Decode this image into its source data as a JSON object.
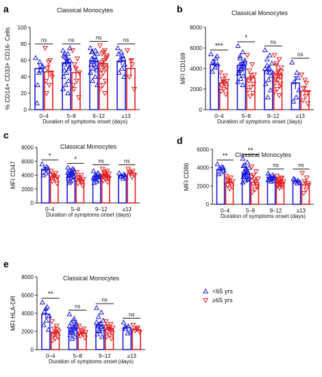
{
  "colors": {
    "young": "#1a1adf",
    "old": "#e41a1c",
    "axis": "#222222"
  },
  "chart_data": [
    {
      "type": "bar",
      "panel": "a",
      "title": "Classical Monocytes",
      "ylabel": "% CD14+ CD33+ CD16- Cells",
      "xlabel": "Duration of symptoms onset (days)",
      "ylim": [
        0,
        100
      ],
      "yticks": [
        "0",
        "20",
        "40",
        "60",
        "80",
        "100"
      ],
      "categories": [
        "0–4",
        "5–8",
        "9–12",
        "≥13"
      ],
      "series": [
        {
          "name": "<65 yrs",
          "values": [
            50,
            57,
            59,
            59
          ],
          "err": [
            6,
            4,
            3,
            5
          ],
          "points": [
            [
              63,
              48,
              30,
              53,
              58,
              8,
              52,
              45
            ],
            [
              72,
              68,
              64,
              60,
              58,
              55,
              50,
              45,
              40,
              35,
              30,
              25,
              20,
              68,
              75,
              62,
              48,
              52,
              58,
              66
            ],
            [
              75,
              72,
              70,
              68,
              65,
              62,
              60,
              58,
              55,
              52,
              50,
              45,
              40,
              35,
              30,
              65,
              70,
              48,
              55
            ],
            [
              75,
              65,
              60,
              55,
              50,
              45,
              40,
              70,
              68,
              62
            ]
          ]
        },
        {
          "name": "≥65 yrs",
          "values": [
            46,
            45,
            56,
            50
          ],
          "err": [
            8,
            7,
            4,
            11
          ],
          "points": [
            [
              75,
              60,
              50,
              40,
              30,
              20,
              45,
              58,
              35
            ],
            [
              72,
              62,
              55,
              45,
              35,
              25,
              15,
              50,
              30
            ],
            [
              78,
              72,
              68,
              64,
              60,
              55,
              50,
              45,
              40,
              35,
              30,
              25,
              20,
              58,
              66,
              52,
              48,
              62,
              70
            ],
            [
              72,
              55,
              40,
              25,
              60
            ]
          ]
        }
      ],
      "significance": [
        "ns",
        "ns",
        "ns",
        "ns"
      ]
    },
    {
      "type": "bar",
      "panel": "b",
      "title": "Classical Monocytes",
      "ylabel": "MFI CD169",
      "xlabel": "Duration of symptoms onset (days)",
      "ylim": [
        0,
        8000
      ],
      "yticks": [
        "0",
        "2000",
        "4000",
        "6000",
        "8000"
      ],
      "categories": [
        "0–4",
        "5–8",
        "9–12",
        "≥13"
      ],
      "series": [
        {
          "name": "<65 yrs",
          "values": [
            4400,
            4300,
            3800,
            2600
          ],
          "err": [
            400,
            300,
            350,
            600
          ],
          "points": [
            [
              5400,
              5000,
              4700,
              4400,
              4100,
              3700,
              5200,
              4500
            ],
            [
              6200,
              5600,
              5200,
              4800,
              4500,
              4300,
              4100,
              3900,
              3600,
              3300,
              3000,
              2700,
              2400,
              5000,
              4600,
              4200,
              3800,
              4400,
              4000,
              3500
            ],
            [
              5800,
              5300,
              4900,
              4500,
              4100,
              3700,
              3300,
              2900,
              2500,
              1900,
              1200,
              4000,
              3600,
              4300
            ],
            [
              4600,
              3600,
              2700,
              1900,
              1200,
              800,
              3100
            ]
          ]
        },
        {
          "name": "≥65 yrs",
          "values": [
            2600,
            3100,
            3500,
            1800
          ],
          "err": [
            300,
            400,
            300,
            400
          ],
          "points": [
            [
              3600,
              3300,
              3000,
              2800,
              2600,
              2400,
              2200,
              2000,
              1800,
              1500,
              2700
            ],
            [
              5300,
              4400,
              3800,
              3400,
              3100,
              2800,
              2500,
              2200,
              1900,
              1600,
              1300
            ],
            [
              5300,
              4900,
              4500,
              4100,
              3800,
              3500,
              3200,
              2900,
              2600,
              2300,
              2000,
              1700,
              1400,
              4300,
              3700,
              3300,
              3000,
              2500
            ],
            [
              3400,
              2600,
              2100,
              1700,
              1300,
              900,
              600,
              2900
            ]
          ]
        }
      ],
      "significance": [
        "***",
        "*",
        "ns",
        "ns"
      ]
    },
    {
      "type": "bar",
      "panel": "c",
      "title": "Classical Monocytes",
      "ylabel": "MFI CD47",
      "xlabel": "Duration of symptoms onset (days)",
      "ylim": [
        0,
        8000
      ],
      "yticks": [
        "0",
        "2000",
        "4000",
        "6000",
        "8000"
      ],
      "categories": [
        "0–4",
        "5–8",
        "9–12",
        "≥13"
      ],
      "series": [
        {
          "name": "<65 yrs",
          "values": [
            4800,
            4200,
            3800,
            3900
          ],
          "err": [
            300,
            150,
            150,
            150
          ],
          "points": [
            [
              5600,
              5200,
              4900,
              4600,
              4300,
              4000,
              5000
            ],
            [
              5100,
              4900,
              4700,
              4500,
              4300,
              4100,
              3900,
              3700,
              3500,
              3300,
              3100,
              4400,
              4200,
              4000,
              3800,
              4600,
              2900,
              4800,
              4300,
              3900
            ],
            [
              4600,
              4300,
              4100,
              3900,
              3700,
              3500,
              3300,
              3100,
              2900,
              3800,
              4000,
              3600,
              4200,
              3400
            ],
            [
              4300,
              4100,
              3900,
              3700,
              3500,
              3800,
              4000
            ]
          ]
        },
        {
          "name": "≥65 yrs",
          "values": [
            3700,
            3300,
            3900,
            4300
          ],
          "err": [
            300,
            200,
            200,
            300
          ],
          "points": [
            [
              4600,
              4300,
              4000,
              3700,
              3400,
              3100,
              2800,
              3900,
              3600
            ],
            [
              4400,
              4000,
              3700,
              3400,
              3100,
              2800,
              2500,
              3300,
              3600,
              3000
            ],
            [
              4900,
              4600,
              4400,
              4200,
              4000,
              3800,
              3600,
              3400,
              3200,
              3000,
              4100,
              3900,
              3700,
              4300,
              3500
            ],
            [
              4900,
              4600,
              4300,
              4000,
              3700,
              4400
            ]
          ]
        }
      ],
      "significance": [
        "*",
        "*",
        "ns",
        "ns"
      ]
    },
    {
      "type": "bar",
      "panel": "d",
      "title": "Classical Monocytes",
      "ylabel": "MFI CD86",
      "xlabel": "Duration of symptoms onset (days)",
      "ylim": [
        0,
        6000
      ],
      "yticks": [
        "0",
        "2000",
        "4000",
        "6000"
      ],
      "categories": [
        "0–4",
        "5–8",
        "9–12",
        "≥13"
      ],
      "series": [
        {
          "name": "<65 yrs",
          "values": [
            3800,
            3300,
            2900,
            2500
          ],
          "err": [
            250,
            150,
            150,
            150
          ],
          "points": [
            [
              4400,
              4100,
              3900,
              3700,
              3500,
              3300,
              4000
            ],
            [
              5000,
              4600,
              4300,
              4000,
              3800,
              3600,
              3400,
              3200,
              3000,
              2800,
              2600,
              2400,
              3500,
              3100,
              2900,
              3700,
              3300,
              2700,
              3900,
              4200
            ],
            [
              3400,
              3200,
              3000,
              2900,
              2800,
              2700,
              2600,
              2500,
              3100,
              2950,
              2850,
              2650
            ],
            [
              2800,
              2600,
              2500,
              2400,
              2300,
              2700
            ]
          ]
        },
        {
          "name": "≥65 yrs",
          "values": [
            2400,
            2400,
            2400,
            2100
          ],
          "err": [
            250,
            250,
            150,
            350
          ],
          "points": [
            [
              3100,
              2900,
              2700,
              2500,
              2300,
              2100,
              1900,
              1700,
              2600
            ],
            [
              4100,
              3600,
              3200,
              2800,
              2500,
              2200,
              1900,
              1600,
              1300,
              2000,
              2700,
              3000
            ],
            [
              3100,
              2900,
              2700,
              2500,
              2400,
              2300,
              2200,
              2100,
              2000,
              1900,
              1800,
              2600,
              2800,
              2450
            ],
            [
              3400,
              2900,
              2500,
              2100,
              1600,
              1200,
              2300
            ]
          ]
        }
      ],
      "significance": [
        "**",
        "**",
        "ns",
        "ns"
      ]
    },
    {
      "type": "bar",
      "panel": "e",
      "title": "Classical Monocytes",
      "ylabel": "MFI HLA-DR",
      "xlabel": "Duration of symptoms onset (days)",
      "ylim": [
        0,
        8000
      ],
      "yticks": [
        "0",
        "2000",
        "4000",
        "6000",
        "8000"
      ],
      "categories": [
        "0–4",
        "5–8",
        "9–12",
        "≥13"
      ],
      "series": [
        {
          "name": "<65 yrs",
          "values": [
            3900,
            2400,
            2700,
            2400
          ],
          "err": [
            500,
            250,
            300,
            200
          ],
          "points": [
            [
              5200,
              4700,
              4200,
              3700,
              3200,
              2700,
              2200,
              4500
            ],
            [
              3900,
              3400,
              3000,
              2700,
              2400,
              2200,
              2000,
              1800,
              1600,
              1400,
              1200,
              2600,
              2300,
              2100,
              2900,
              3200,
              1900,
              2500
            ],
            [
              4600,
              4100,
              3600,
              3200,
              2900,
              2600,
              2300,
              2000,
              1700,
              1400,
              2700,
              3000,
              2500,
              2100
            ],
            [
              3000,
              2600,
              2300,
              2000,
              1800,
              2500
            ]
          ]
        },
        {
          "name": "≥65 yrs",
          "values": [
            1900,
            1800,
            2200,
            2200
          ],
          "err": [
            250,
            150,
            200,
            250
          ],
          "points": [
            [
              3100,
              2600,
              2300,
              2000,
              1800,
              1600,
              1400,
              1200,
              1000,
              2200,
              1700
            ],
            [
              2600,
              2300,
              2100,
              1900,
              1700,
              1500,
              1300,
              2000,
              1800
            ],
            [
              3100,
              2800,
              2600,
              2400,
              2200,
              2000,
              1800,
              1600,
              1400,
              1200,
              2300,
              2500,
              2100
            ],
            [
              2700,
              2400,
              2100,
              1900,
              2300
            ]
          ]
        }
      ],
      "significance": [
        "**",
        "ns",
        "ns",
        "ns"
      ],
      "legend": [
        "<65 yrs",
        "≥65 yrs"
      ]
    }
  ]
}
